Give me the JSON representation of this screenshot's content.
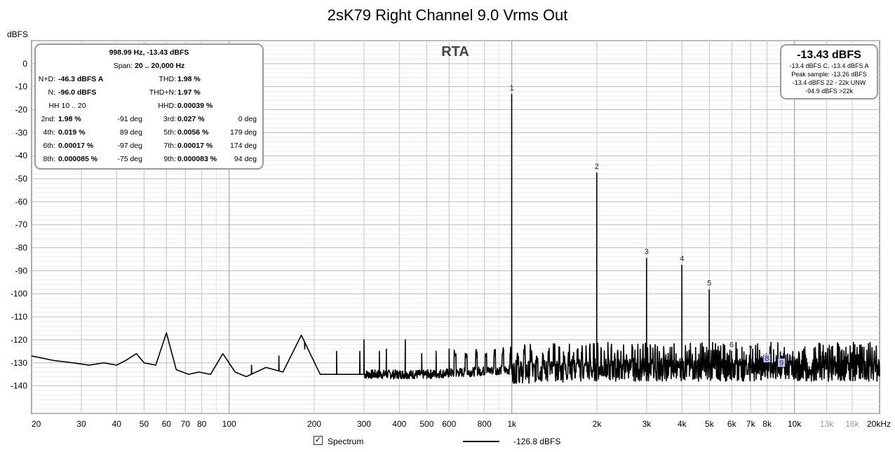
{
  "chart_data": {
    "type": "line",
    "title": "2sK79 Right Channel 9.0 Vrms Out",
    "ylabel": "dBFS",
    "xscale": "log",
    "xlim": [
      20,
      20000
    ],
    "ylim": [
      -152,
      10
    ],
    "grid": true,
    "xticks": [
      {
        "v": 20,
        "l": "20"
      },
      {
        "v": 30,
        "l": "30"
      },
      {
        "v": 40,
        "l": "40"
      },
      {
        "v": 50,
        "l": "50"
      },
      {
        "v": 60,
        "l": "60"
      },
      {
        "v": 70,
        "l": "70"
      },
      {
        "v": 80,
        "l": "80"
      },
      {
        "v": 100,
        "l": "100"
      },
      {
        "v": 200,
        "l": "200"
      },
      {
        "v": 300,
        "l": "300"
      },
      {
        "v": 400,
        "l": "400"
      },
      {
        "v": 500,
        "l": "500"
      },
      {
        "v": 600,
        "l": "600"
      },
      {
        "v": 800,
        "l": "800"
      },
      {
        "v": 1000,
        "l": "1k"
      },
      {
        "v": 2000,
        "l": "2k"
      },
      {
        "v": 3000,
        "l": "3k"
      },
      {
        "v": 4000,
        "l": "4k"
      },
      {
        "v": 5000,
        "l": "5k"
      },
      {
        "v": 6000,
        "l": "6k"
      },
      {
        "v": 7000,
        "l": "7k"
      },
      {
        "v": 8000,
        "l": "8k"
      },
      {
        "v": 10000,
        "l": "10k"
      },
      {
        "v": 13000,
        "l": "13k"
      },
      {
        "v": 16000,
        "l": "16k"
      },
      {
        "v": 20000,
        "l": "20kHz"
      }
    ],
    "yticks": [
      0,
      -10,
      -20,
      -30,
      -40,
      -50,
      -60,
      -70,
      -80,
      -90,
      -100,
      -110,
      -120,
      -130,
      -140
    ],
    "series": [
      {
        "name": "Spectrum",
        "noise_floor": [
          [
            20,
            -127
          ],
          [
            24,
            -129
          ],
          [
            28,
            -130
          ],
          [
            32,
            -131
          ],
          [
            36,
            -130
          ],
          [
            40,
            -131
          ],
          [
            43,
            -129
          ],
          [
            47,
            -126
          ],
          [
            50,
            -130
          ],
          [
            55,
            -131
          ],
          [
            60,
            -117
          ],
          [
            65,
            -133
          ],
          [
            72,
            -135
          ],
          [
            78,
            -134
          ],
          [
            86,
            -135
          ],
          [
            95,
            -126
          ],
          [
            105,
            -134
          ],
          [
            115,
            -136
          ],
          [
            135,
            -132
          ],
          [
            155,
            -134
          ],
          [
            180,
            -118
          ],
          [
            210,
            -135
          ],
          [
            300,
            -135
          ],
          [
            500,
            -135
          ],
          [
            700,
            -134
          ],
          [
            950,
            -133
          ],
          [
            1000,
            -133
          ],
          [
            2000,
            -132
          ],
          [
            5000,
            -132
          ],
          [
            10000,
            -132
          ],
          [
            20000,
            -132
          ]
        ],
        "peaks": [
          {
            "label": "1",
            "f": 999,
            "db": -13.4
          },
          {
            "label": "2",
            "f": 1998,
            "db": -47.5
          },
          {
            "label": "3",
            "f": 2997,
            "db": -84.6
          },
          {
            "label": "4",
            "f": 3996,
            "db": -87.6
          },
          {
            "label": "5",
            "f": 4995,
            "db": -98.2
          },
          {
            "label": "6",
            "f": 5994,
            "db": -125
          },
          {
            "label": "7",
            "f": 6993,
            "db": -127
          },
          {
            "label": "8",
            "f": 7992,
            "db": -131
          },
          {
            "label": "9",
            "f": 8991,
            "db": -133
          }
        ],
        "spurs": [
          [
            60,
            -117
          ],
          [
            120,
            -131
          ],
          [
            150,
            -127
          ],
          [
            180,
            -118
          ],
          [
            185,
            -124
          ],
          [
            240,
            -125
          ],
          [
            290,
            -125
          ],
          [
            300,
            -120
          ],
          [
            340,
            -125
          ],
          [
            360,
            -124
          ],
          [
            420,
            -120
          ],
          [
            480,
            -126
          ],
          [
            540,
            -125
          ],
          [
            600,
            -124
          ]
        ]
      }
    ]
  },
  "info_box": {
    "header": "998.99 Hz, -13.43 dBFS",
    "span_label": "Span:",
    "span_value": "20 .. 20,000 Hz",
    "rows": [
      {
        "l1": "N+D:",
        "v1": "-46.3 dBFS A",
        "d1": "",
        "l2": "THD:",
        "v2": "1.98 %",
        "d2": ""
      },
      {
        "l1": "N:",
        "v1": "-96.0 dBFS",
        "d1": "",
        "l2": "THD+N:",
        "v2": "1.97 %",
        "d2": ""
      },
      {
        "l1": "HH 10 .. 20",
        "v1": "",
        "d1": "",
        "l2": "HHD:",
        "v2": "0.00039 %",
        "d2": ""
      },
      {
        "l1": "2nd:",
        "v1": "1.98 %",
        "d1": "-91 deg",
        "l2": "3rd:",
        "v2": "0.027 %",
        "d2": "0 deg"
      },
      {
        "l1": "4th:",
        "v1": "0.019 %",
        "d1": "89 deg",
        "l2": "5th:",
        "v2": "0.0056 %",
        "d2": "179 deg"
      },
      {
        "l1": "6th:",
        "v1": "0.00017 %",
        "d1": "-97 deg",
        "l2": "7th:",
        "v2": "0.00017 %",
        "d2": "174 deg"
      },
      {
        "l1": "8th:",
        "v1": "0.000085 %",
        "d1": "-75 deg",
        "l2": "9th:",
        "v2": "0.000083 %",
        "d2": "94 deg"
      }
    ]
  },
  "rta_label": "RTA",
  "level_box": {
    "main": "-13.43 dBFS",
    "line1": "-13.4 dBFS C, -13.4 dBFS A",
    "line2": "Peak sample: -13.26 dBFS",
    "line3": "-13.4 dBFS 22 - 22k UNW",
    "line4": "-94.9 dBFS >22k"
  },
  "legend": {
    "checkbox_label": "Spectrum",
    "checked_glyph": "✓",
    "value_text": "-126.8 dBFS"
  }
}
